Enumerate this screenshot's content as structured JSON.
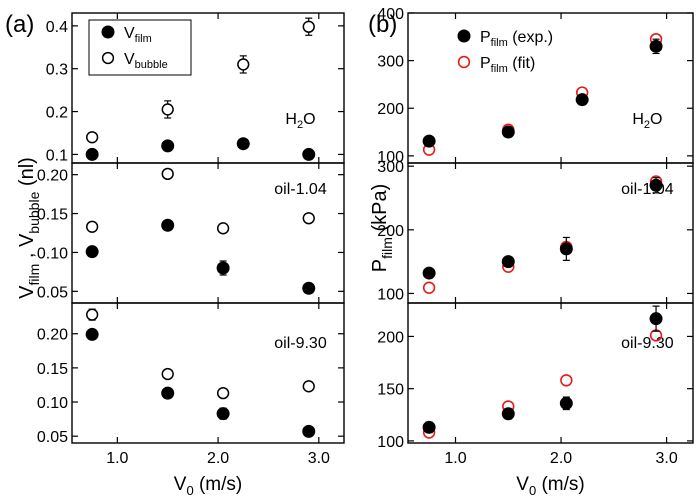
{
  "chart_data": [
    {
      "type": "scatter",
      "panel_label": "(a)",
      "title": "",
      "xlabel_main": "V",
      "xlabel_sub": "0",
      "xlabel_unit": " (m/s)",
      "ylabel_parts": [
        "V",
        "film",
        " , V",
        "bubble",
        " (nl)"
      ],
      "xlim": [
        0.55,
        3.25
      ],
      "xticks": [
        1.0,
        2.0,
        3.0
      ],
      "xtick_labels": [
        "1.0",
        "2.0",
        "3.0"
      ],
      "legend": {
        "placement": "top-left",
        "entries": [
          {
            "main": "V",
            "sub": "film",
            "marker": "filled-circle"
          },
          {
            "main": "V",
            "sub": "bubble",
            "marker": "open-circle"
          }
        ]
      },
      "subplots": [
        {
          "label_main": "H",
          "label_sub": "2",
          "label_tail": "O",
          "ylim": [
            0.08,
            0.43
          ],
          "yticks": [
            0.1,
            0.2,
            0.3,
            0.4
          ],
          "ytick_labels": [
            "0.1",
            "0.2",
            "0.3",
            "0.4"
          ],
          "series": [
            {
              "name": "V_film",
              "marker": "filled-circle",
              "x": [
                0.75,
                1.5,
                2.25,
                2.9
              ],
              "y": [
                0.1,
                0.12,
                0.125,
                0.1
              ],
              "err": [
                0,
                0,
                0,
                0
              ]
            },
            {
              "name": "V_bubble",
              "marker": "open-circle",
              "x": [
                0.75,
                1.5,
                2.25,
                2.9
              ],
              "y": [
                0.14,
                0.205,
                0.31,
                0.398
              ],
              "err": [
                0,
                0.02,
                0.02,
                0.02
              ]
            }
          ]
        },
        {
          "label_main": "oil-1.04",
          "label_sub": "",
          "label_tail": "",
          "ylim": [
            0.035,
            0.215
          ],
          "yticks": [
            0.05,
            0.1,
            0.15,
            0.2
          ],
          "ytick_labels": [
            "0.05",
            "0.10",
            "0.15",
            "0.20"
          ],
          "series": [
            {
              "name": "V_film",
              "marker": "filled-circle",
              "x": [
                0.75,
                1.5,
                2.05,
                2.9
              ],
              "y": [
                0.101,
                0.135,
                0.08,
                0.054
              ],
              "err": [
                0,
                0,
                0.009,
                0
              ]
            },
            {
              "name": "V_bubble",
              "marker": "open-circle",
              "x": [
                0.75,
                1.5,
                2.05,
                2.9
              ],
              "y": [
                0.133,
                0.201,
                0.131,
                0.144
              ],
              "err": [
                0.004,
                0.004,
                0.004,
                0.004
              ]
            }
          ]
        },
        {
          "label_main": "oil-9.30",
          "label_sub": "",
          "label_tail": "",
          "ylim": [
            0.04,
            0.245
          ],
          "yticks": [
            0.05,
            0.1,
            0.15,
            0.2
          ],
          "ytick_labels": [
            "0.05",
            "0.10",
            "0.15",
            "0.20"
          ],
          "series": [
            {
              "name": "V_film",
              "marker": "filled-circle",
              "x": [
                0.75,
                1.5,
                2.05,
                2.9
              ],
              "y": [
                0.199,
                0.113,
                0.083,
                0.057
              ],
              "err": [
                0,
                0,
                0.008,
                0
              ]
            },
            {
              "name": "V_bubble",
              "marker": "open-circle",
              "x": [
                0.75,
                1.5,
                2.05,
                2.9
              ],
              "y": [
                0.228,
                0.141,
                0.113,
                0.123
              ],
              "err": [
                0.008,
                0.004,
                0.004,
                0.004
              ]
            }
          ]
        }
      ]
    },
    {
      "type": "scatter",
      "panel_label": "(b)",
      "title": "",
      "xlabel_main": "V",
      "xlabel_sub": "0",
      "xlabel_unit": " (m/s)",
      "ylabel_parts": [
        "P",
        "film",
        " (kPa)"
      ],
      "xlim": [
        0.55,
        3.25
      ],
      "xticks": [
        1.0,
        2.0,
        3.0
      ],
      "xtick_labels": [
        "1.0",
        "2.0",
        "3.0"
      ],
      "legend": {
        "placement": "top-left",
        "entries": [
          {
            "main": "P",
            "sub": "film",
            "tail": " (exp.)",
            "marker": "filled-circle"
          },
          {
            "main": "P",
            "sub": "film",
            "tail": " (fit)",
            "marker": "open-circle-red"
          }
        ]
      },
      "subplots": [
        {
          "label_main": "H",
          "label_sub": "2",
          "label_tail": "O",
          "ylim": [
            85,
            400
          ],
          "yticks": [
            100,
            200,
            300,
            400
          ],
          "ytick_labels": [
            "100",
            "200",
            "300",
            "400"
          ],
          "series": [
            {
              "name": "P_film (exp.)",
              "marker": "filled-circle",
              "x": [
                0.75,
                1.5,
                2.2,
                2.9
              ],
              "y": [
                131,
                150,
                218,
                330
              ],
              "err": [
                0,
                0,
                0,
                15
              ]
            },
            {
              "name": "P_film (fit)",
              "marker": "open-circle-red",
              "x": [
                0.75,
                1.5,
                2.2,
                2.9
              ],
              "y": [
                113,
                155,
                233,
                345
              ],
              "err": [
                0,
                0,
                0,
                0
              ]
            }
          ]
        },
        {
          "label_main": "oil-1.04",
          "label_sub": "",
          "label_tail": "",
          "ylim": [
            85,
            305
          ],
          "yticks": [
            100,
            200,
            300
          ],
          "ytick_labels": [
            "100",
            "200",
            "300"
          ],
          "series": [
            {
              "name": "P_film (exp.)",
              "marker": "filled-circle",
              "x": [
                0.75,
                1.5,
                2.05,
                2.9
              ],
              "y": [
                132,
                150,
                170,
                270
              ],
              "err": [
                0,
                0,
                18,
                12
              ]
            },
            {
              "name": "P_film (fit)",
              "marker": "open-circle-red",
              "x": [
                0.75,
                1.5,
                2.05,
                2.9
              ],
              "y": [
                109,
                142,
                173,
                276
              ],
              "err": [
                0,
                0,
                0,
                0
              ]
            }
          ]
        },
        {
          "label_main": "oil-9.30",
          "label_sub": "",
          "label_tail": "",
          "ylim": [
            98,
            232
          ],
          "yticks": [
            100,
            150,
            200
          ],
          "ytick_labels": [
            "100",
            "150",
            "200"
          ],
          "series": [
            {
              "name": "P_film (exp.)",
              "marker": "filled-circle",
              "x": [
                0.75,
                1.5,
                2.05,
                2.9
              ],
              "y": [
                113,
                126,
                136,
                217
              ],
              "err": [
                5,
                5,
                6,
                12
              ]
            },
            {
              "name": "P_film (fit)",
              "marker": "open-circle-red",
              "x": [
                0.75,
                1.5,
                2.05,
                2.9
              ],
              "y": [
                108,
                133,
                158,
                201
              ],
              "err": [
                0,
                0,
                0,
                0
              ]
            }
          ]
        }
      ]
    }
  ],
  "colors": {
    "axis": "#000000",
    "film_marker": "#000000",
    "bubble_marker": "#000000",
    "fit_marker": "#e8191c",
    "background": "#ffffff"
  }
}
